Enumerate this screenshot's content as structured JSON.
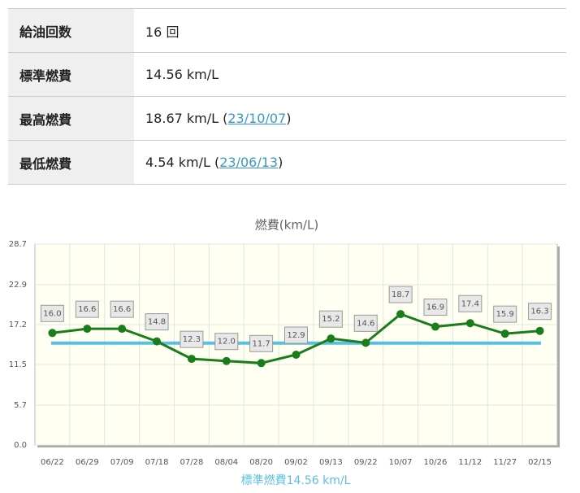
{
  "table": {
    "rows": [
      {
        "label": "給油回数",
        "value": "16 回"
      },
      {
        "label": "標準燃費",
        "value": "14.56 km/L"
      },
      {
        "label": "最高燃費",
        "value": "18.67 km/L (",
        "link": "23/10/07",
        "suffix": ")"
      },
      {
        "label": "最低燃費",
        "value": "4.54 km/L (",
        "link": "23/06/13",
        "suffix": ")"
      }
    ]
  },
  "chart_data": {
    "type": "line",
    "title": "燃費(km/L)",
    "categories": [
      "06/22",
      "06/29",
      "07/09",
      "07/18",
      "07/28",
      "08/04",
      "08/20",
      "09/02",
      "09/13",
      "09/22",
      "10/07",
      "10/26",
      "11/12",
      "11/27",
      "02/15"
    ],
    "series": [
      {
        "name": "燃費",
        "color": "#1a7d1a",
        "values": [
          16.0,
          16.6,
          16.6,
          14.8,
          12.3,
          12.0,
          11.7,
          12.9,
          15.2,
          14.6,
          18.7,
          16.9,
          17.4,
          15.9,
          16.3
        ],
        "value_labels": [
          "16.0",
          "16.6",
          "16.6",
          "14.8",
          "12.3",
          "12.0",
          "11.7",
          "12.9",
          "15.2",
          "14.6",
          "18.7",
          "16.9",
          "17.4",
          "15.9",
          "16.3"
        ]
      }
    ],
    "reference_value": 14.56,
    "reference_color": "#5bc0de",
    "reference_label": "標準燃費14.56 km/L",
    "ylim": [
      0,
      28.7
    ],
    "yticks": [
      {
        "value": 0,
        "label": "0.0"
      },
      5.7,
      11.5,
      17.2,
      22.9,
      28.7
    ],
    "grid": true
  }
}
